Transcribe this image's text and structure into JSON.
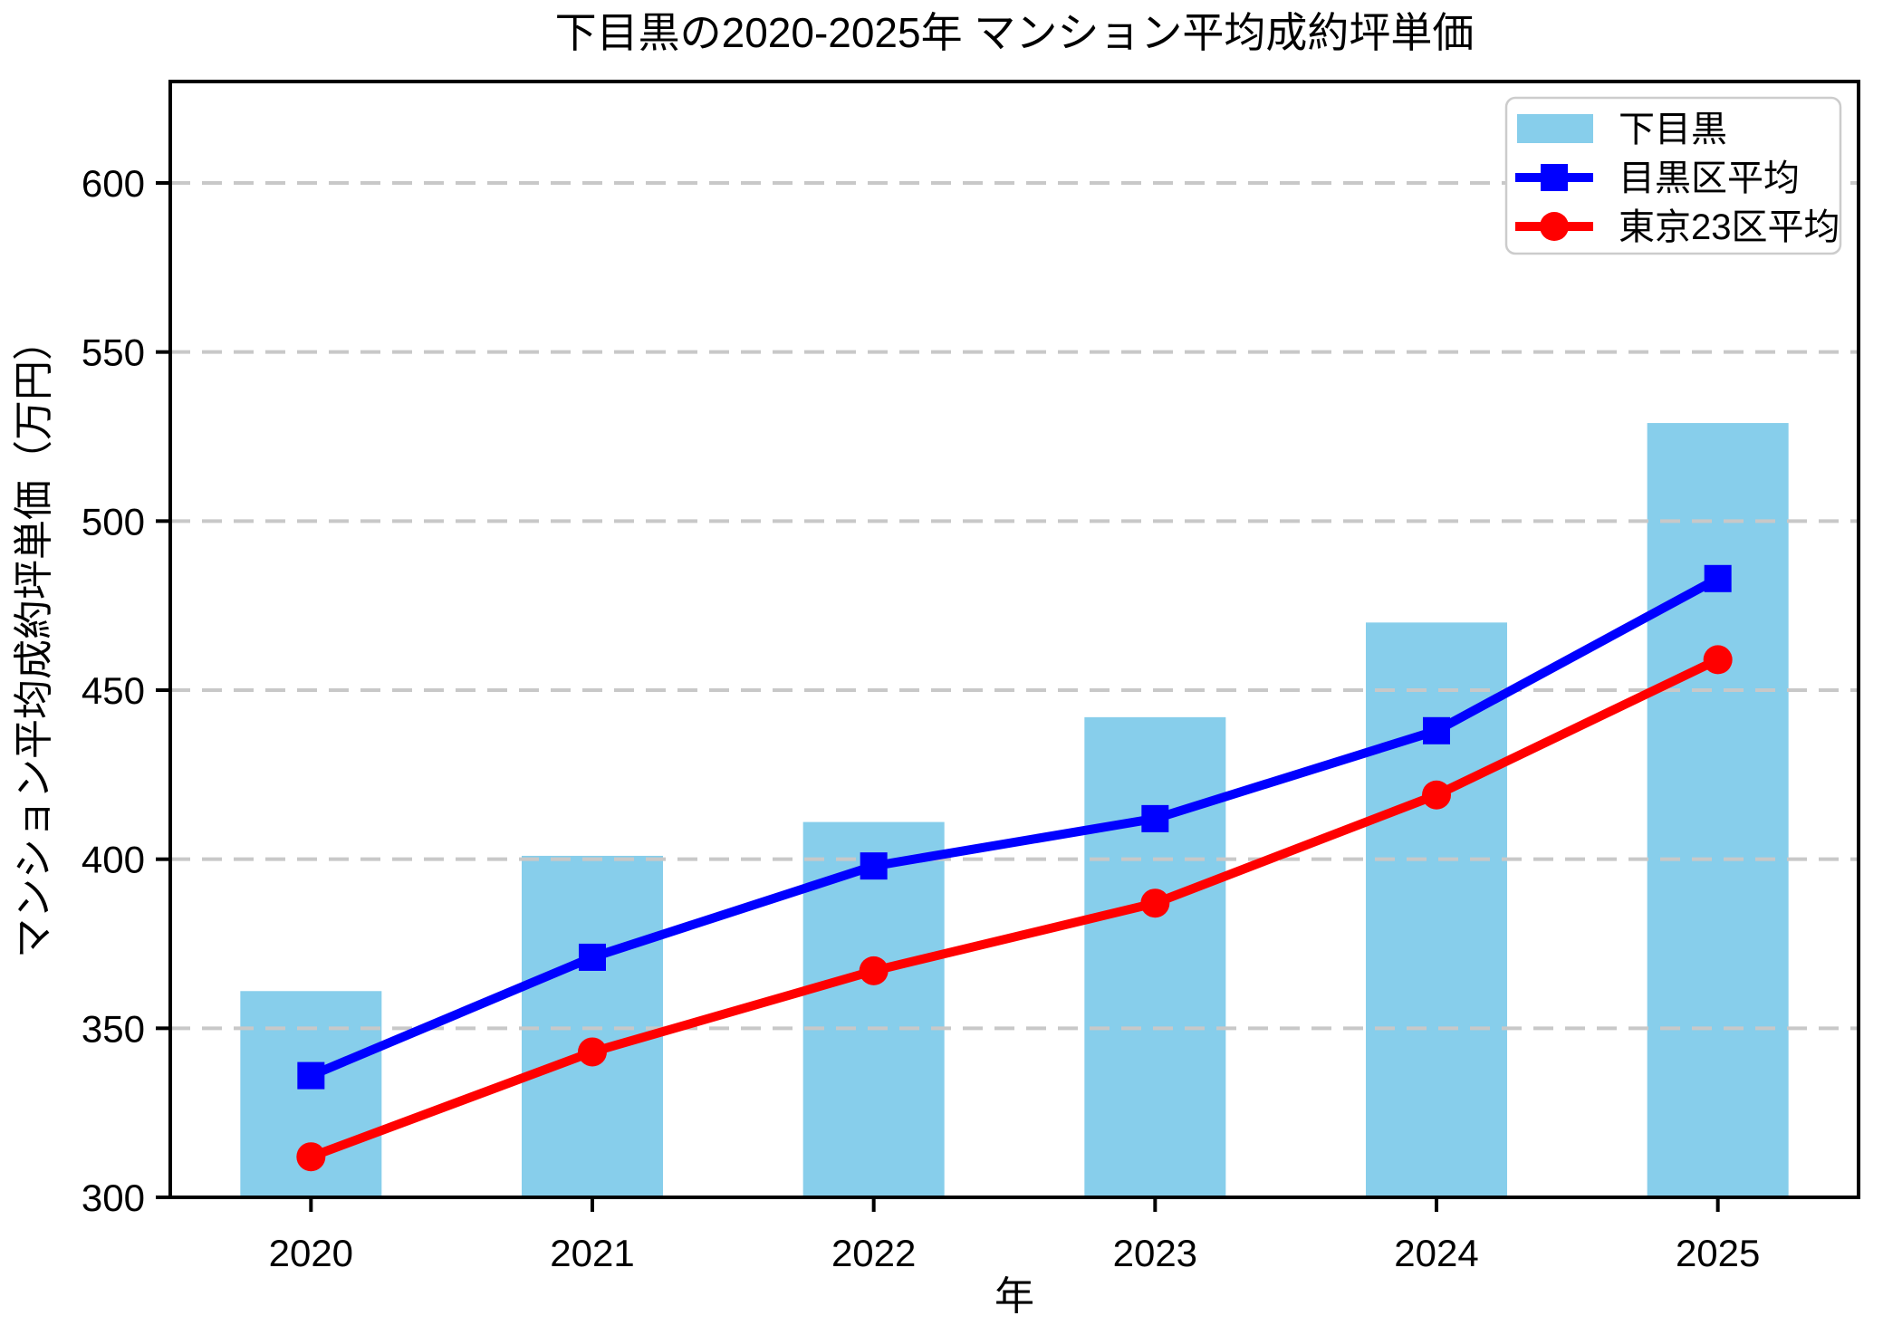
{
  "chart_data": {
    "type": "combo",
    "title": "下目黒の2020-2025年 マンション平均成約坪単価",
    "xlabel": "年",
    "ylabel": "マンション平均成約坪単価（万円）",
    "categories": [
      "2020",
      "2021",
      "2022",
      "2023",
      "2024",
      "2025"
    ],
    "ylim": [
      300,
      630
    ],
    "yticks": [
      300,
      350,
      400,
      450,
      500,
      550,
      600
    ],
    "grid": "horizontal-dashed",
    "grid_color": "#c8c8c8",
    "legend_position": "upper-right",
    "series": [
      {
        "name": "下目黒",
        "type": "bar",
        "color": "#87CEEB",
        "values": [
          361,
          401,
          411,
          442,
          470,
          529
        ]
      },
      {
        "name": "目黒区平均",
        "type": "line",
        "marker": "square",
        "color": "#0000FF",
        "values": [
          336,
          371,
          398,
          412,
          438,
          483
        ]
      },
      {
        "name": "東京23区平均",
        "type": "line",
        "marker": "circle",
        "color": "#FF0000",
        "values": [
          312,
          343,
          367,
          387,
          419,
          459
        ]
      }
    ]
  }
}
